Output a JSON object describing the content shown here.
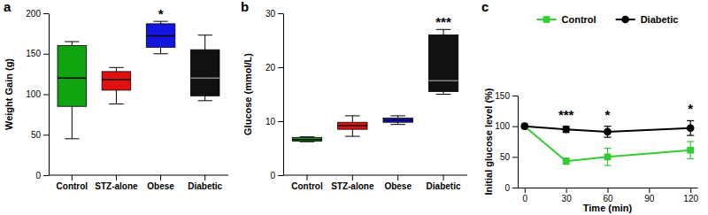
{
  "chart_data": [
    {
      "type": "box",
      "title": "a",
      "ylabel": "Weight Gain (g)",
      "categories": [
        "Control",
        "STZ-alone",
        "Obese",
        "Diabetic"
      ],
      "stats": [
        {
          "min": 45,
          "q1": 85,
          "median": 120,
          "q3": 160,
          "max": 165
        },
        {
          "min": 88,
          "q1": 105,
          "median": 118,
          "q3": 128,
          "max": 133
        },
        {
          "min": 150,
          "q1": 158,
          "median": 172,
          "q3": 187,
          "max": 190
        },
        {
          "min": 92,
          "q1": 98,
          "median": 120,
          "q3": 155,
          "max": 173
        }
      ],
      "colors": [
        "#0fa30f",
        "#e01010",
        "#1515e0",
        "#111111"
      ],
      "ylim": [
        0,
        200
      ],
      "yticks": [
        0,
        50,
        100,
        150,
        200
      ],
      "grid": false,
      "annotations": [
        {
          "text": "*",
          "category": "Obese"
        }
      ]
    },
    {
      "type": "box",
      "title": "b",
      "ylabel": "Glucose (mmol/L)",
      "categories": [
        "Control",
        "STZ-alone",
        "Obese",
        "Diabetic"
      ],
      "stats": [
        {
          "min": 6.2,
          "q1": 6.3,
          "median": 6.6,
          "q3": 7.0,
          "max": 7.1
        },
        {
          "min": 7.2,
          "q1": 8.5,
          "median": 9.2,
          "q3": 9.8,
          "max": 11
        },
        {
          "min": 9.4,
          "q1": 9.8,
          "median": 10.2,
          "q3": 10.6,
          "max": 11
        },
        {
          "min": 15,
          "q1": 15.5,
          "median": 17.5,
          "q3": 26,
          "max": 27
        }
      ],
      "colors": [
        "#0fa30f",
        "#e01010",
        "#1515e0",
        "#111111"
      ],
      "ylim": [
        0,
        30
      ],
      "yticks": [
        0,
        10,
        20,
        30
      ],
      "grid": false,
      "annotations": [
        {
          "text": "***",
          "category": "Diabetic"
        }
      ]
    },
    {
      "type": "line",
      "title": "c",
      "xlabel": "Time (min)",
      "ylabel": "Initial glucose level (%)",
      "x": [
        0,
        30,
        60,
        120
      ],
      "series": [
        {
          "name": "Control",
          "color": "#33cc33",
          "marker": "square",
          "line_style": "solid",
          "values": [
            100,
            43,
            50,
            61
          ],
          "errors": [
            0,
            5,
            14,
            14
          ]
        },
        {
          "name": "Diabetic",
          "color": "#000000",
          "marker": "circle",
          "line_style": "solid",
          "values": [
            100,
            95,
            91,
            97
          ],
          "errors": [
            0,
            5,
            9,
            12
          ]
        }
      ],
      "xlim": [
        -5,
        125
      ],
      "xticks": [
        0,
        30,
        60,
        90,
        120
      ],
      "ylim": [
        0,
        150
      ],
      "yticks": [
        0,
        50,
        100,
        150
      ],
      "grid": false,
      "legend": "top",
      "annotations": [
        {
          "text": "***",
          "x": 30
        },
        {
          "text": "*",
          "x": 60
        },
        {
          "text": "*",
          "x": 120
        }
      ]
    }
  ]
}
